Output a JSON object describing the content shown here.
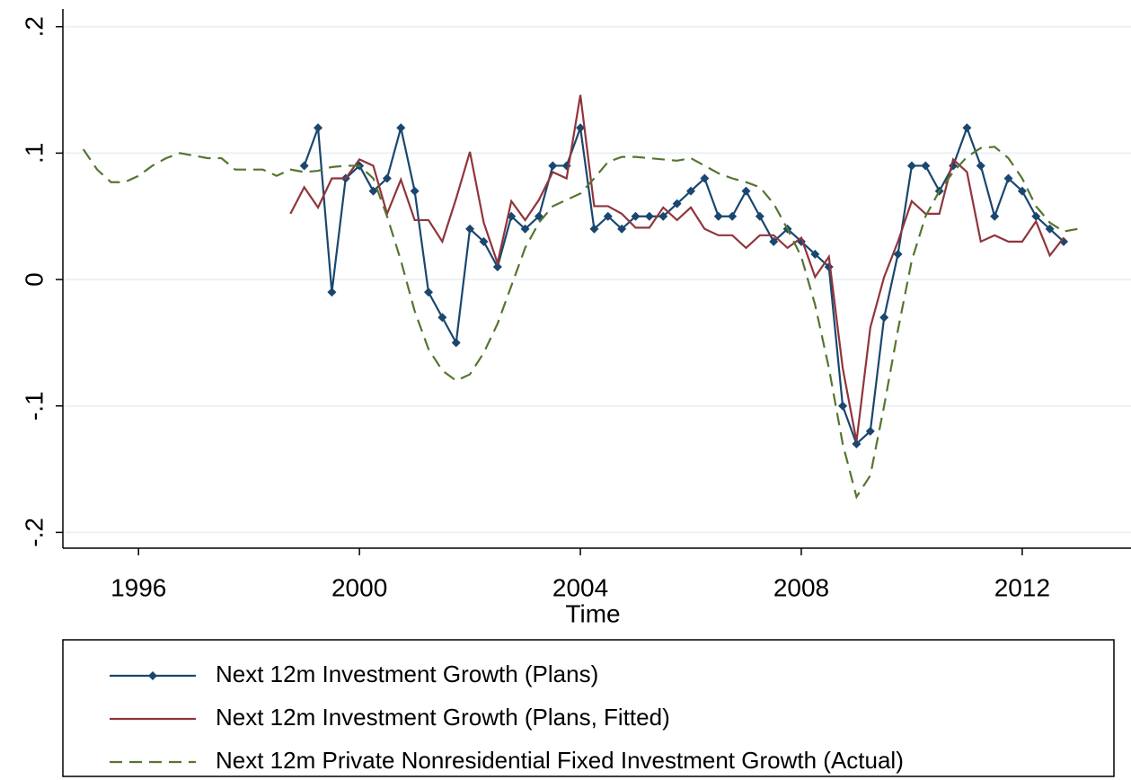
{
  "chart_data": {
    "type": "line",
    "x_label": "Time",
    "x": [
      1995,
      1995.25,
      1995.5,
      1995.75,
      1996,
      1996.25,
      1996.5,
      1996.75,
      1997,
      1997.25,
      1997.5,
      1997.75,
      1998,
      1998.25,
      1998.5,
      1998.75,
      1999,
      1999.25,
      1999.5,
      1999.75,
      2000,
      2000.25,
      2000.5,
      2000.75,
      2001,
      2001.25,
      2001.5,
      2001.75,
      2002,
      2002.25,
      2002.5,
      2002.75,
      2003,
      2003.25,
      2003.5,
      2003.75,
      2004,
      2004.25,
      2004.5,
      2004.75,
      2005,
      2005.25,
      2005.5,
      2005.75,
      2006,
      2006.25,
      2006.5,
      2006.75,
      2007,
      2007.25,
      2007.5,
      2007.75,
      2008,
      2008.25,
      2008.5,
      2008.75,
      2009,
      2009.25,
      2009.5,
      2009.75,
      2010,
      2010.25,
      2010.5,
      2010.75,
      2011,
      2011.25,
      2011.5,
      2011.75,
      2012,
      2012.25,
      2012.5,
      2012.75,
      2013
    ],
    "series": [
      {
        "name": "Next 12m Investment Growth (Plans)",
        "color": "#1a476f",
        "marker": "diamond",
        "dash": false,
        "values": [
          null,
          null,
          null,
          null,
          null,
          null,
          null,
          null,
          null,
          null,
          null,
          null,
          null,
          null,
          null,
          null,
          0.09,
          0.12,
          -0.01,
          0.08,
          0.09,
          0.07,
          0.08,
          0.12,
          0.07,
          -0.01,
          -0.03,
          -0.05,
          0.04,
          0.03,
          0.01,
          0.05,
          0.04,
          0.05,
          0.09,
          0.09,
          0.12,
          0.04,
          0.05,
          0.04,
          0.05,
          0.05,
          0.05,
          0.06,
          0.07,
          0.08,
          0.05,
          0.05,
          0.07,
          0.05,
          0.03,
          0.04,
          0.03,
          0.02,
          0.01,
          -0.1,
          -0.13,
          -0.12,
          -0.03,
          0.02,
          0.09,
          0.09,
          0.07,
          0.09,
          0.12,
          0.09,
          0.05,
          0.08,
          0.07,
          0.05,
          0.04,
          0.03,
          null
        ]
      },
      {
        "name": "Next 12m Investment Growth (Plans, Fitted)",
        "color": "#90353b",
        "marker": null,
        "dash": false,
        "values": [
          null,
          null,
          null,
          null,
          null,
          null,
          null,
          null,
          null,
          null,
          null,
          null,
          null,
          null,
          null,
          0.052,
          0.073,
          0.057,
          0.08,
          0.08,
          0.095,
          0.09,
          0.052,
          0.079,
          0.047,
          0.047,
          0.03,
          0.064,
          0.101,
          0.045,
          0.013,
          0.062,
          0.047,
          0.063,
          0.085,
          0.08,
          0.146,
          0.058,
          0.058,
          0.052,
          0.041,
          0.041,
          0.057,
          0.047,
          0.057,
          0.04,
          0.035,
          0.035,
          0.025,
          0.035,
          0.035,
          0.025,
          0.033,
          0.002,
          0.018,
          -0.07,
          -0.128,
          -0.038,
          0.002,
          0.03,
          0.062,
          0.052,
          0.052,
          0.095,
          0.085,
          0.03,
          0.035,
          0.03,
          0.03,
          0.046,
          0.019,
          0.033,
          null
        ]
      },
      {
        "name": "Next 12m Private Nonresidential Fixed Investment Growth (Actual)",
        "color": "#55752f",
        "marker": null,
        "dash": true,
        "values": [
          0.103,
          0.087,
          0.077,
          0.077,
          0.082,
          0.09,
          0.096,
          0.1,
          0.098,
          0.096,
          0.096,
          0.087,
          0.087,
          0.087,
          0.082,
          0.087,
          0.085,
          0.086,
          0.089,
          0.09,
          0.09,
          0.08,
          0.05,
          0.015,
          -0.025,
          -0.055,
          -0.072,
          -0.08,
          -0.075,
          -0.058,
          -0.035,
          -0.005,
          0.025,
          0.045,
          0.058,
          0.063,
          0.068,
          0.08,
          0.093,
          0.097,
          0.097,
          0.096,
          0.095,
          0.094,
          0.096,
          0.09,
          0.084,
          0.08,
          0.077,
          0.073,
          0.06,
          0.04,
          0.018,
          -0.02,
          -0.07,
          -0.13,
          -0.172,
          -0.155,
          -0.1,
          -0.04,
          0.015,
          0.05,
          0.07,
          0.085,
          0.097,
          0.104,
          0.105,
          0.096,
          0.08,
          0.058,
          0.045,
          0.038,
          0.04
        ]
      }
    ],
    "xlim": [
      1994.63,
      2013.97
    ],
    "xticks": [
      1996,
      2000,
      2004,
      2008,
      2012
    ],
    "ylim": [
      -0.2125,
      0.214
    ],
    "yticks": [
      {
        "value": -0.2,
        "label": "-.2"
      },
      {
        "value": -0.1,
        "label": "-.1"
      },
      {
        "value": 0,
        "label": "0"
      },
      {
        "value": 0.1,
        "label": ".1"
      },
      {
        "value": 0.2,
        "label": ".2"
      }
    ],
    "grid": true,
    "legend": "bottom"
  }
}
